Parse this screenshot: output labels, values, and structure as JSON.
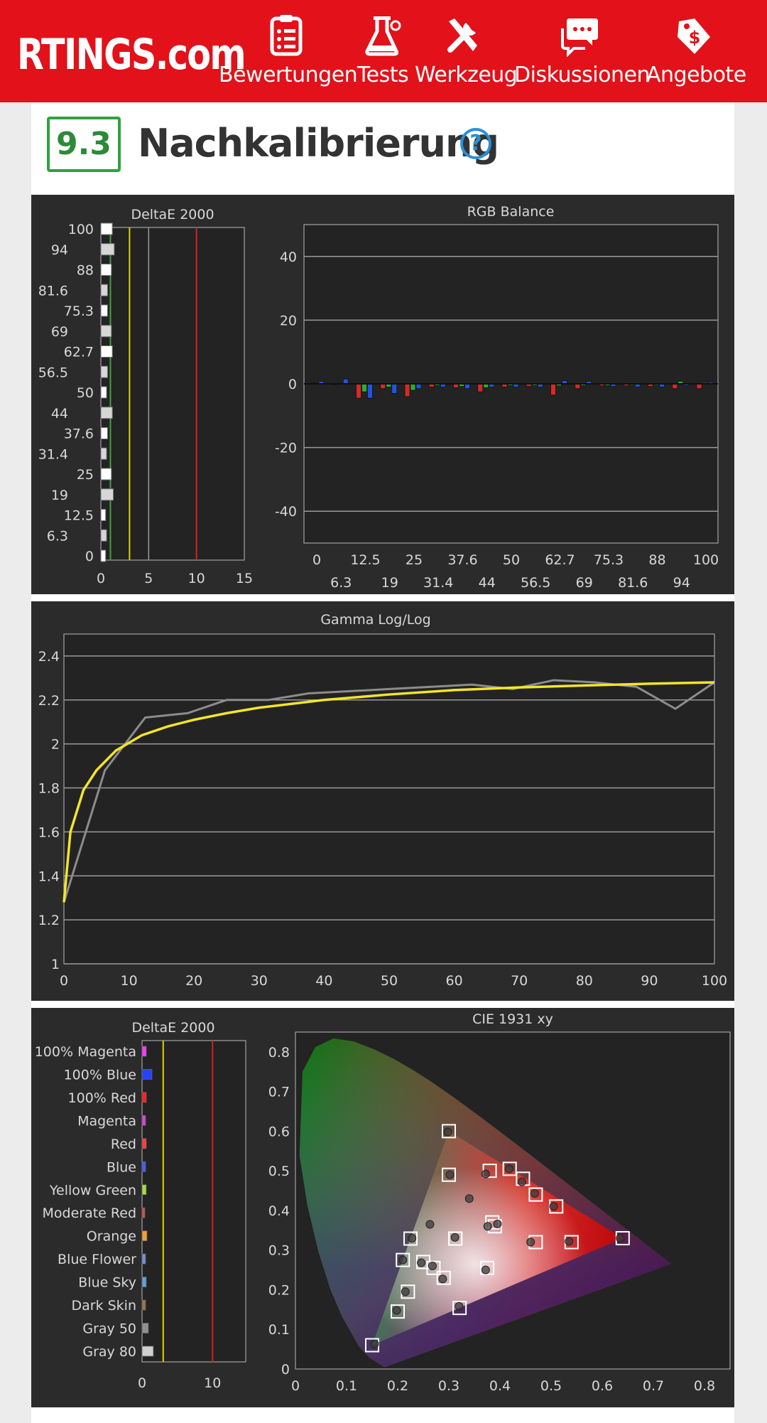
{
  "header": {
    "logo_main": "RTINGS",
    "logo_suffix": ".com",
    "nav": [
      {
        "icon": "clipboard-icon",
        "label": "Bewertungen"
      },
      {
        "icon": "flask-icon",
        "label": "Tests"
      },
      {
        "icon": "tools-icon",
        "label": "Werkzeug"
      },
      {
        "icon": "chat-icon",
        "label": "Diskussionen"
      },
      {
        "icon": "price-tag-icon",
        "label": "Angebote"
      }
    ]
  },
  "section": {
    "score": "9.3",
    "title": "Nachkalibrierung",
    "help_symbol": "?"
  },
  "chart_data": [
    {
      "type": "bar",
      "title": "DeltaE 2000",
      "orientation": "horizontal",
      "categories": [
        "0",
        "6.3",
        "12.5",
        "19",
        "25",
        "31.4",
        "37.6",
        "44",
        "50",
        "56.5",
        "62.7",
        "69",
        "75.3",
        "81.6",
        "88",
        "94",
        "100"
      ],
      "values": [
        0.5,
        0.6,
        0.5,
        1.3,
        1.1,
        0.6,
        0.7,
        1.2,
        0.6,
        0.7,
        1.2,
        1.1,
        0.7,
        0.7,
        1.1,
        1.4,
        1.2
      ],
      "xlim": [
        0,
        15
      ],
      "xticks": [
        "0",
        "5",
        "10",
        "15"
      ],
      "reference_lines": [
        {
          "value": 1,
          "color": "#3fa33f"
        },
        {
          "value": 3,
          "color": "#e0d000"
        },
        {
          "value": 10,
          "color": "#d42020"
        }
      ]
    },
    {
      "type": "bar",
      "title": "RGB Balance",
      "categories": [
        "0",
        "6.3",
        "12.5",
        "19",
        "25",
        "31.4",
        "37.6",
        "44",
        "50",
        "56.5",
        "62.7",
        "69",
        "75.3",
        "81.6",
        "88",
        "94",
        "100"
      ],
      "series": [
        {
          "color": "#d42a2a",
          "values": [
            0.2,
            0,
            -4.5,
            -1.5,
            -4,
            -1,
            -1.2,
            -2.5,
            -1,
            -0.8,
            -3.5,
            -1.5,
            -0.6,
            -0.6,
            -0.8,
            -1.5,
            -1.5
          ]
        },
        {
          "color": "#2bb02b",
          "values": [
            0.3,
            0.2,
            -2.5,
            -1,
            -2,
            -0.5,
            -0.8,
            -1.2,
            -0.5,
            -0.5,
            -0.6,
            -0.5,
            -0.5,
            -0.4,
            -0.4,
            0.8,
            0.4
          ]
        },
        {
          "color": "#2255dd",
          "values": [
            0.8,
            1.5,
            -4.5,
            -3,
            -1.5,
            -1,
            -1.5,
            -1,
            -1,
            -1,
            1,
            0.8,
            -0.8,
            -1,
            -1,
            -0.5,
            0.5
          ]
        }
      ],
      "ylim": [
        -50,
        50
      ],
      "yticks": [
        "40",
        "20",
        "0",
        "-20",
        "-40"
      ],
      "xticks_row1": [
        "0",
        "12.5",
        "25",
        "37.6",
        "50",
        "62.7",
        "75.3",
        "88",
        "100"
      ],
      "xticks_row2": [
        "6.3",
        "19",
        "31.4",
        "44",
        "56.5",
        "69",
        "81.6",
        "94"
      ]
    },
    {
      "type": "line",
      "title": "Gamma Log/Log",
      "xlim": [
        0,
        100
      ],
      "ylim": [
        1,
        2.5
      ],
      "xticks": [
        "0",
        "10",
        "20",
        "30",
        "40",
        "50",
        "60",
        "70",
        "80",
        "90",
        "100"
      ],
      "yticks": [
        "1",
        "1.2",
        "1.4",
        "1.6",
        "1.8",
        "2",
        "2.2",
        "2.4"
      ],
      "series": [
        {
          "color": "#8c8c8c",
          "x": [
            0,
            6.3,
            12.5,
            19,
            25,
            31.4,
            37.6,
            44,
            50,
            56.5,
            62.7,
            69,
            75.3,
            81.6,
            88,
            94,
            100
          ],
          "y": [
            1.28,
            1.88,
            2.12,
            2.14,
            2.2,
            2.2,
            2.23,
            2.24,
            2.25,
            2.26,
            2.27,
            2.25,
            2.29,
            2.28,
            2.26,
            2.16,
            2.28
          ]
        },
        {
          "color": "#f2e52a",
          "x": [
            0,
            1,
            3,
            5,
            8,
            12,
            16,
            20,
            25,
            30,
            40,
            50,
            60,
            70,
            80,
            90,
            100
          ],
          "y": [
            1.28,
            1.6,
            1.79,
            1.88,
            1.97,
            2.04,
            2.08,
            2.11,
            2.14,
            2.165,
            2.2,
            2.225,
            2.245,
            2.257,
            2.266,
            2.274,
            2.28
          ]
        }
      ]
    },
    {
      "type": "bar",
      "title": "DeltaE 2000",
      "orientation": "horizontal",
      "categories": [
        "100% Magenta",
        "100% Blue",
        "100% Red",
        "Magenta",
        "Red",
        "Blue",
        "Yellow Green",
        "Moderate Red",
        "Orange",
        "Blue Flower",
        "Blue Sky",
        "Dark Skin",
        "Gray 50",
        "Gray 80"
      ],
      "values": [
        0.6,
        1.4,
        0.6,
        0.5,
        0.6,
        0.5,
        0.6,
        0.4,
        0.7,
        0.5,
        0.6,
        0.5,
        0.9,
        1.6
      ],
      "xlim": [
        0,
        15
      ],
      "xticks": [
        "0",
        "10"
      ],
      "reference_lines": [
        {
          "value": 3,
          "color": "#e0d000"
        },
        {
          "value": 10,
          "color": "#d42020"
        }
      ]
    },
    {
      "type": "scatter",
      "title": "CIE 1931 xy",
      "xlim": [
        0,
        0.85
      ],
      "ylim": [
        0,
        0.85
      ],
      "xticks": [
        "0",
        "0.1",
        "0.2",
        "0.3",
        "0.4",
        "0.5",
        "0.6",
        "0.7",
        "0.8"
      ],
      "yticks": [
        "0",
        "0.1",
        "0.2",
        "0.3",
        "0.4",
        "0.5",
        "0.6",
        "0.7",
        "0.8"
      ],
      "gamut": [
        [
          0.64,
          0.33
        ],
        [
          0.3,
          0.6
        ],
        [
          0.15,
          0.06
        ]
      ],
      "targets": [
        [
          0.64,
          0.33
        ],
        [
          0.3,
          0.6
        ],
        [
          0.15,
          0.06
        ],
        [
          0.419,
          0.505
        ],
        [
          0.321,
          0.154
        ],
        [
          0.225,
          0.329
        ],
        [
          0.3127,
          0.329
        ],
        [
          0.3127,
          0.329
        ],
        [
          0.3,
          0.49
        ],
        [
          0.38,
          0.5
        ],
        [
          0.445,
          0.48
        ],
        [
          0.47,
          0.44
        ],
        [
          0.51,
          0.41
        ],
        [
          0.54,
          0.32
        ],
        [
          0.47,
          0.32
        ],
        [
          0.39,
          0.36
        ],
        [
          0.375,
          0.255
        ],
        [
          0.385,
          0.37
        ],
        [
          0.2,
          0.145
        ],
        [
          0.22,
          0.195
        ],
        [
          0.21,
          0.275
        ],
        [
          0.25,
          0.27
        ],
        [
          0.27,
          0.255
        ],
        [
          0.29,
          0.23
        ]
      ],
      "measured": [
        [
          0.635,
          0.33
        ],
        [
          0.298,
          0.598
        ],
        [
          0.155,
          0.063
        ],
        [
          0.418,
          0.505
        ],
        [
          0.32,
          0.158
        ],
        [
          0.228,
          0.33
        ],
        [
          0.312,
          0.332
        ],
        [
          0.263,
          0.365
        ],
        [
          0.302,
          0.49
        ],
        [
          0.372,
          0.492
        ],
        [
          0.443,
          0.472
        ],
        [
          0.468,
          0.443
        ],
        [
          0.505,
          0.41
        ],
        [
          0.535,
          0.322
        ],
        [
          0.46,
          0.32
        ],
        [
          0.376,
          0.36
        ],
        [
          0.372,
          0.25
        ],
        [
          0.395,
          0.366
        ],
        [
          0.198,
          0.148
        ],
        [
          0.215,
          0.195
        ],
        [
          0.21,
          0.275
        ],
        [
          0.246,
          0.268
        ],
        [
          0.268,
          0.26
        ],
        [
          0.288,
          0.227
        ],
        [
          0.34,
          0.43
        ]
      ]
    }
  ]
}
